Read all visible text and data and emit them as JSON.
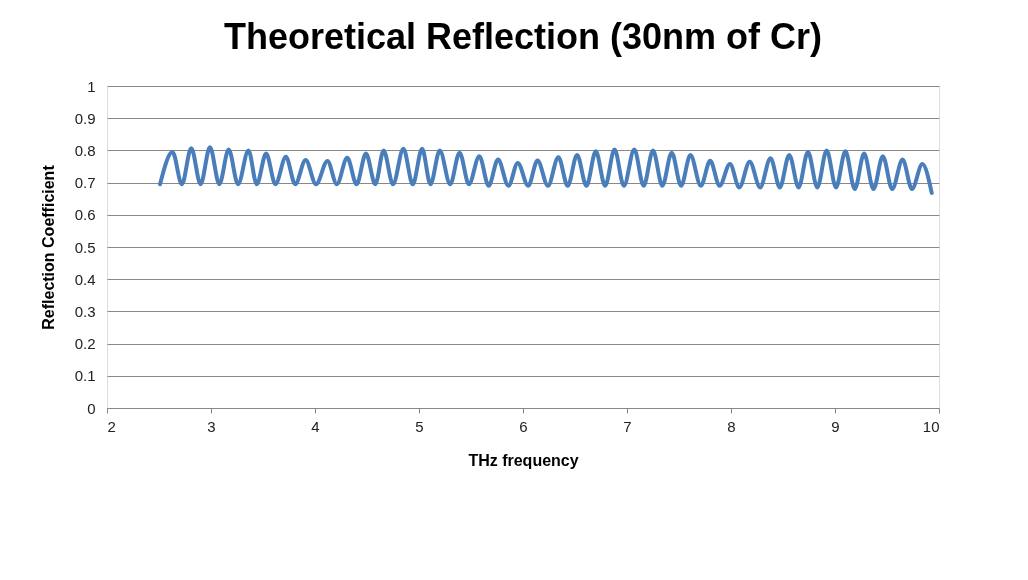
{
  "chart_data": {
    "type": "line",
    "title": "Theoretical Reflection (30nm of Cr)",
    "xlabel": "THz frequency",
    "ylabel": "Reflection Coefficient",
    "x": [
      2.51,
      2.63,
      2.72,
      2.81,
      2.9,
      2.99,
      3.08,
      3.17,
      3.26,
      3.36,
      3.44,
      3.53,
      3.62,
      3.72,
      3.81,
      3.91,
      4.01,
      4.12,
      4.21,
      4.31,
      4.4,
      4.49,
      4.58,
      4.66,
      4.75,
      4.85,
      4.94,
      5.03,
      5.11,
      5.2,
      5.3,
      5.39,
      5.48,
      5.58,
      5.67,
      5.76,
      5.86,
      5.95,
      6.05,
      6.14,
      6.24,
      6.34,
      6.43,
      6.52,
      6.61,
      6.7,
      6.79,
      6.88,
      6.97,
      7.07,
      7.16,
      7.25,
      7.34,
      7.43,
      7.52,
      7.61,
      7.71,
      7.8,
      7.89,
      7.99,
      8.08,
      8.18,
      8.28,
      8.38,
      8.47,
      8.56,
      8.65,
      8.74,
      8.83,
      8.92,
      9.01,
      9.1,
      9.19,
      9.28,
      9.37,
      9.46,
      9.55,
      9.65,
      9.74,
      9.84,
      9.93
    ],
    "series": [
      {
        "color": "#4a7ebb",
        "values": [
          0.695,
          0.795,
          0.695,
          0.807,
          0.695,
          0.81,
          0.695,
          0.803,
          0.695,
          0.8,
          0.695,
          0.79,
          0.695,
          0.78,
          0.695,
          0.77,
          0.695,
          0.767,
          0.695,
          0.777,
          0.695,
          0.79,
          0.695,
          0.8,
          0.695,
          0.805,
          0.695,
          0.805,
          0.695,
          0.8,
          0.695,
          0.793,
          0.695,
          0.782,
          0.69,
          0.772,
          0.69,
          0.761,
          0.69,
          0.769,
          0.69,
          0.779,
          0.69,
          0.786,
          0.69,
          0.797,
          0.69,
          0.803,
          0.69,
          0.803,
          0.69,
          0.8,
          0.69,
          0.793,
          0.69,
          0.786,
          0.69,
          0.768,
          0.69,
          0.758,
          0.685,
          0.765,
          0.685,
          0.776,
          0.685,
          0.786,
          0.685,
          0.795,
          0.685,
          0.8,
          0.685,
          0.797,
          0.68,
          0.79,
          0.68,
          0.782,
          0.68,
          0.772,
          0.68,
          0.758,
          0.668
        ]
      }
    ],
    "xlim": [
      2,
      10
    ],
    "xticks": [
      2,
      3,
      4,
      5,
      6,
      7,
      8,
      9,
      10
    ],
    "ylim": [
      0,
      1
    ],
    "yticks": [
      0,
      0.1,
      0.2,
      0.3,
      0.4,
      0.5,
      0.6,
      0.7,
      0.8,
      0.9,
      1
    ],
    "grid": "y",
    "marker": "none",
    "line_style": "solid"
  }
}
